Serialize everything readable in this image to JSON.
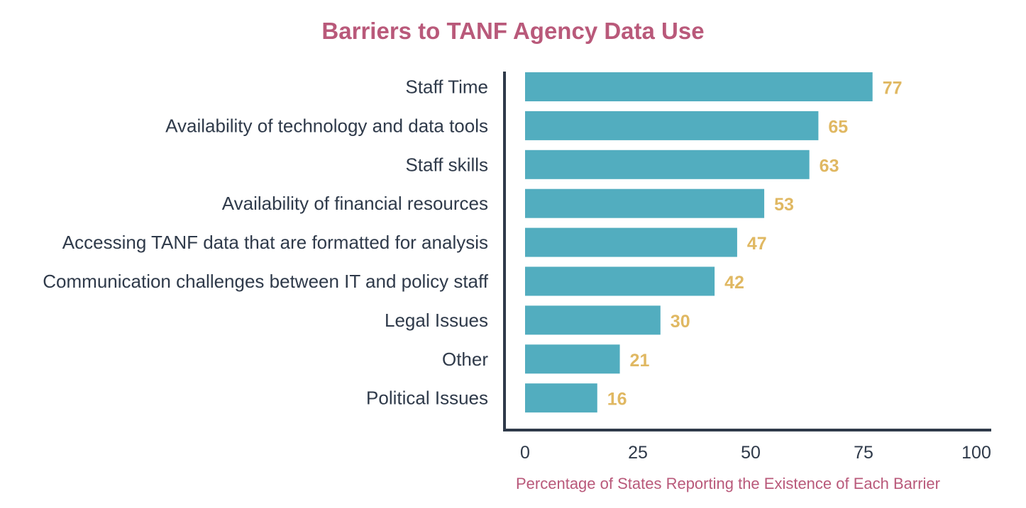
{
  "chart_data": {
    "type": "bar",
    "orientation": "horizontal",
    "title": "Barriers to TANF Agency Data Use",
    "xlabel": "Percentage of States Reporting the Existence of Each Barrier",
    "ylabel": "",
    "categories": [
      "Staff Time",
      "Availability of technology and data tools",
      "Staff skills",
      "Availability of financial resources",
      "Accessing TANF data that are formatted for analysis",
      "Communication challenges between IT and policy staff",
      "Legal Issues",
      "Other",
      "Political Issues"
    ],
    "values": [
      77,
      65,
      63,
      53,
      47,
      42,
      30,
      21,
      16
    ],
    "xlim": [
      0,
      100
    ],
    "xticks": [
      "0",
      "25",
      "50",
      "75",
      "100"
    ],
    "grid": false,
    "legend": "none"
  },
  "colors": {
    "bar": "#52adbf",
    "value_label": "#e0b862",
    "title": "#b9597a",
    "axis_title": "#b9597a",
    "category_label": "#2f3a4a",
    "axis_line": "#2f3a4a",
    "tick_label": "#2f3a4a"
  }
}
